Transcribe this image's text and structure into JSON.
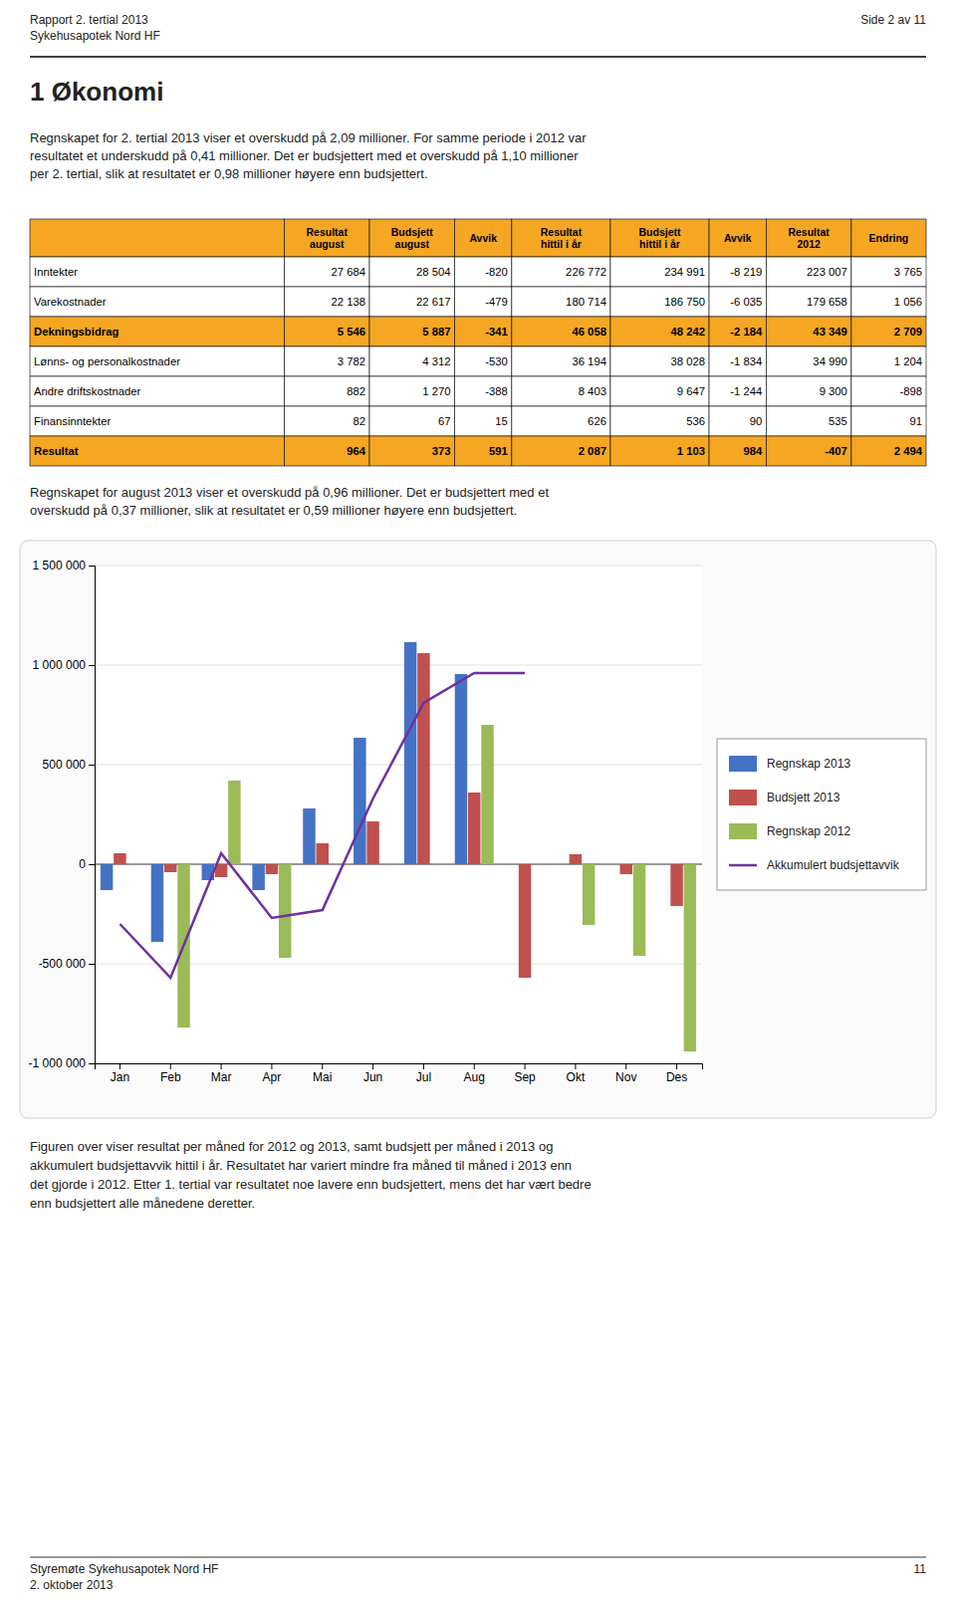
{
  "page": {
    "header_left_line1": "Rapport 2. tertial 2013",
    "header_left_line2": "Sykehusapotek Nord HF",
    "header_right": "Side 2 av 11",
    "section_title": "1  Økonomi",
    "para1_lines": [
      "Regnskapet for 2. tertial 2013 viser et overskudd på 2,09 millioner. For samme periode i 2012 var",
      "resultatet et underskudd på 0,41 millioner. Det er budsjettert med et overskudd på 1,10 millioner",
      "per 2. tertial, slik at resultatet er 0,98 millioner høyere enn budsjettert."
    ],
    "table": {
      "col_headers": [
        "Resultat\naugust",
        "Budsjett\naugust",
        "Avvik",
        "Resultat\nhittil i år",
        "Budsjett\nhittil i år",
        "Avvik",
        "Resultat\n2012",
        "Endring"
      ],
      "rows": [
        {
          "label": "Inntekter",
          "values": [
            "27 684",
            "28 504",
            "-820",
            "226 772",
            "234 991",
            "-8 219",
            "223 007",
            "3 765"
          ],
          "bold": false,
          "highlight": false
        },
        {
          "label": "Varekostnader",
          "values": [
            "22 138",
            "22 617",
            "-479",
            "180 714",
            "186 750",
            "-6 035",
            "179 658",
            "1 056"
          ],
          "bold": false,
          "highlight": false
        },
        {
          "label": "Dekningsbidrag",
          "values": [
            "5 546",
            "5 887",
            "-341",
            "46 058",
            "48 242",
            "-2 184",
            "43 349",
            "2 709"
          ],
          "bold": true,
          "highlight": true
        },
        {
          "label": "Lønns- og personalkostnader",
          "values": [
            "3 782",
            "4 312",
            "-530",
            "36 194",
            "38 028",
            "-1 834",
            "34 990",
            "1 204"
          ],
          "bold": false,
          "highlight": false
        },
        {
          "label": "Andre driftskostnader",
          "values": [
            "882",
            "1 270",
            "-388",
            "8 403",
            "9 647",
            "-1 244",
            "9 300",
            "-898"
          ],
          "bold": false,
          "highlight": false
        },
        {
          "label": "Finansinntekter",
          "values": [
            "82",
            "67",
            "15",
            "626",
            "536",
            "90",
            "535",
            "91"
          ],
          "bold": false,
          "highlight": false
        },
        {
          "label": "Resultat",
          "values": [
            "964",
            "373",
            "591",
            "2 087",
            "1 103",
            "984",
            "-407",
            "2 494"
          ],
          "bold": true,
          "highlight": true
        }
      ],
      "header_bg": "#F5A623",
      "highlight_bg": "#F5A623",
      "normal_bg": "#FFFFFF",
      "border_color": "#000000"
    },
    "para2_lines": [
      "Regnskapet for august 2013 viser et overskudd på 0,96 millioner. Det er budsjettert med et",
      "overskudd på 0,37 millioner, slik at resultatet er 0,59 millioner høyere enn budsjettert."
    ],
    "para3_lines": [
      "Figuren over viser resultat per måned for 2012 og 2013, samt budsjett per måned i 2013 og",
      "akkumulert budsjettavvik hittil i år. Resultatet har variert mindre fra måned til måned i 2013 enn",
      "det gjorde i 2012. Etter 1. tertial var resultatet noe lavere enn budsjettert, mens det har vært bedre",
      "enn budsjettert alle månedene deretter."
    ],
    "footer_left": "Styremøte Sykehusapotek Nord HF",
    "footer_date": "2. oktober 2013",
    "footer_right": "11"
  },
  "chart_data": {
    "type": "bar",
    "categories": [
      "Jan",
      "Feb",
      "Mar",
      "Apr",
      "Mai",
      "Jun",
      "Jul",
      "Aug",
      "Sep",
      "Okt",
      "Nov",
      "Des"
    ],
    "series": [
      {
        "name": "Regnskap 2013",
        "type": "bar",
        "color": "#4472C4",
        "values": [
          -130000,
          -390000,
          -80000,
          -130000,
          280000,
          635000,
          1115000,
          955000,
          null,
          null,
          null,
          null
        ]
      },
      {
        "name": "Budsjett 2013",
        "type": "bar",
        "color": "#C0504D",
        "values": [
          55000,
          -40000,
          -65000,
          -50000,
          105000,
          215000,
          1060000,
          360000,
          -570000,
          50000,
          -50000,
          -210000
        ]
      },
      {
        "name": "Regnskap 2012",
        "type": "bar",
        "color": "#9BBB59",
        "values": [
          null,
          -820000,
          420000,
          -470000,
          null,
          null,
          null,
          700000,
          null,
          -305000,
          -460000,
          -940000
        ]
      },
      {
        "name": "Akkumulert budsjettavvik",
        "type": "line",
        "color": "#7030A0",
        "values": [
          -300000,
          -570000,
          55000,
          -270000,
          -230000,
          330000,
          810000,
          960000,
          960000,
          null,
          null,
          null
        ]
      }
    ],
    "ylim": [
      -1000000,
      1500000
    ],
    "yticks": [
      {
        "value": -1000000,
        "label": "-1 000 000"
      },
      {
        "value": -500000,
        "label": "-500 000"
      },
      0,
      {
        "value": 500000,
        "label": "500 000"
      },
      {
        "value": 1000000,
        "label": "1 000 000"
      },
      {
        "value": 1500000,
        "label": "1 500 000"
      }
    ],
    "grid": true,
    "legend": "right"
  }
}
